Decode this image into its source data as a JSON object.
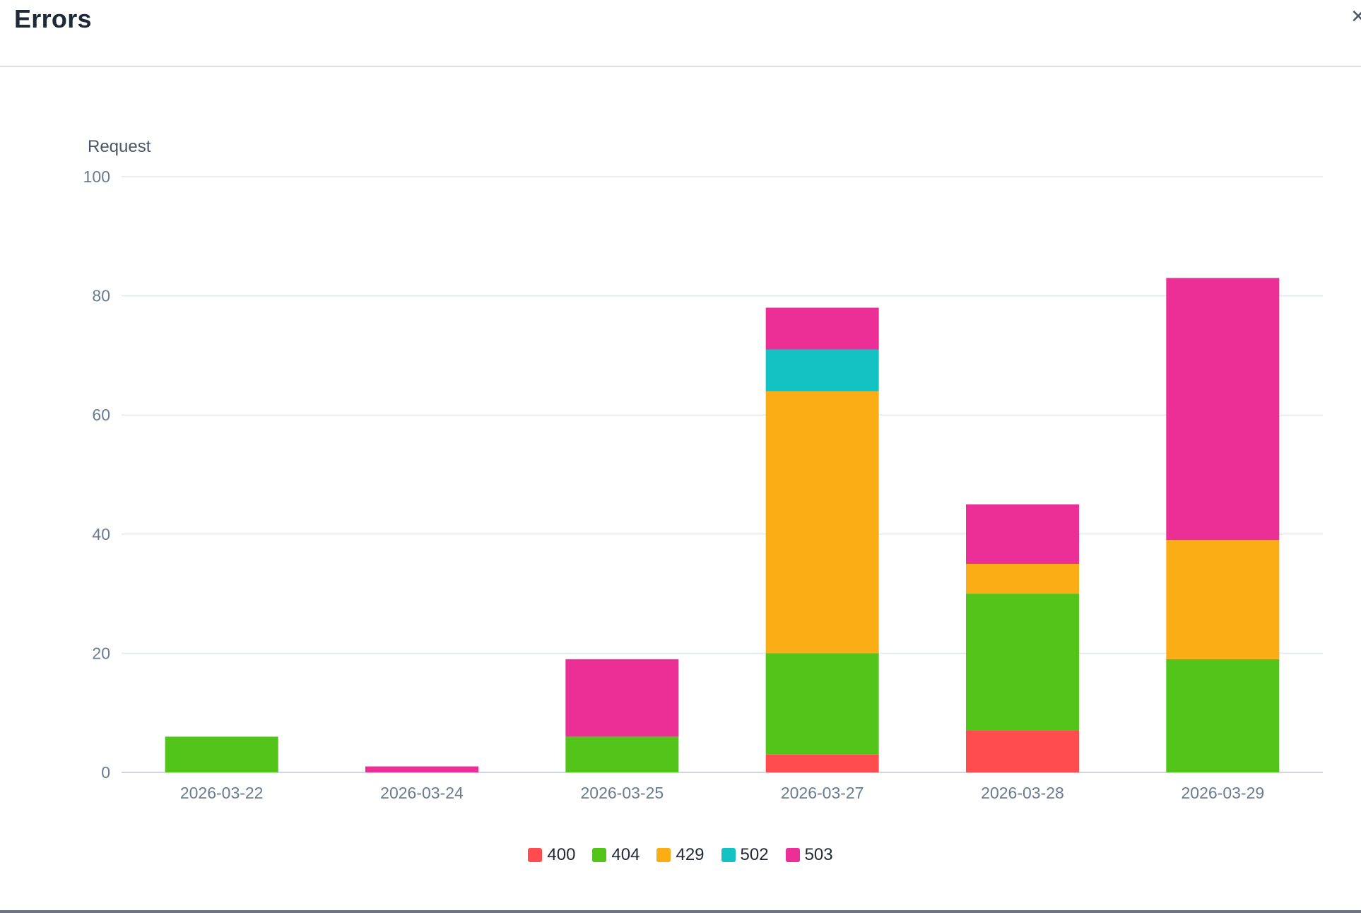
{
  "panel": {
    "title": "Errors",
    "close_label": "×"
  },
  "chart_data": {
    "type": "bar",
    "stacked": true,
    "ylabel": "Request",
    "xlabel": "",
    "ylim": [
      0,
      100
    ],
    "yticks": [
      0,
      20,
      40,
      60,
      80,
      100
    ],
    "grid": true,
    "legend_position": "bottom-center",
    "categories": [
      "2026-03-22",
      "2026-03-24",
      "2026-03-25",
      "2026-03-27",
      "2026-03-28",
      "2026-03-29"
    ],
    "series": [
      {
        "name": "400",
        "color": "#ff4d4f",
        "values": [
          0,
          0,
          0,
          3,
          7,
          0
        ]
      },
      {
        "name": "404",
        "color": "#52c41a",
        "values": [
          6,
          0,
          6,
          17,
          23,
          19
        ]
      },
      {
        "name": "429",
        "color": "#faad14",
        "values": [
          0,
          0,
          0,
          44,
          5,
          20
        ]
      },
      {
        "name": "502",
        "color": "#13c2c2",
        "values": [
          0,
          0,
          0,
          7,
          0,
          0
        ]
      },
      {
        "name": "503",
        "color": "#eb2f96",
        "values": [
          0,
          1,
          13,
          7,
          10,
          44
        ]
      }
    ]
  }
}
